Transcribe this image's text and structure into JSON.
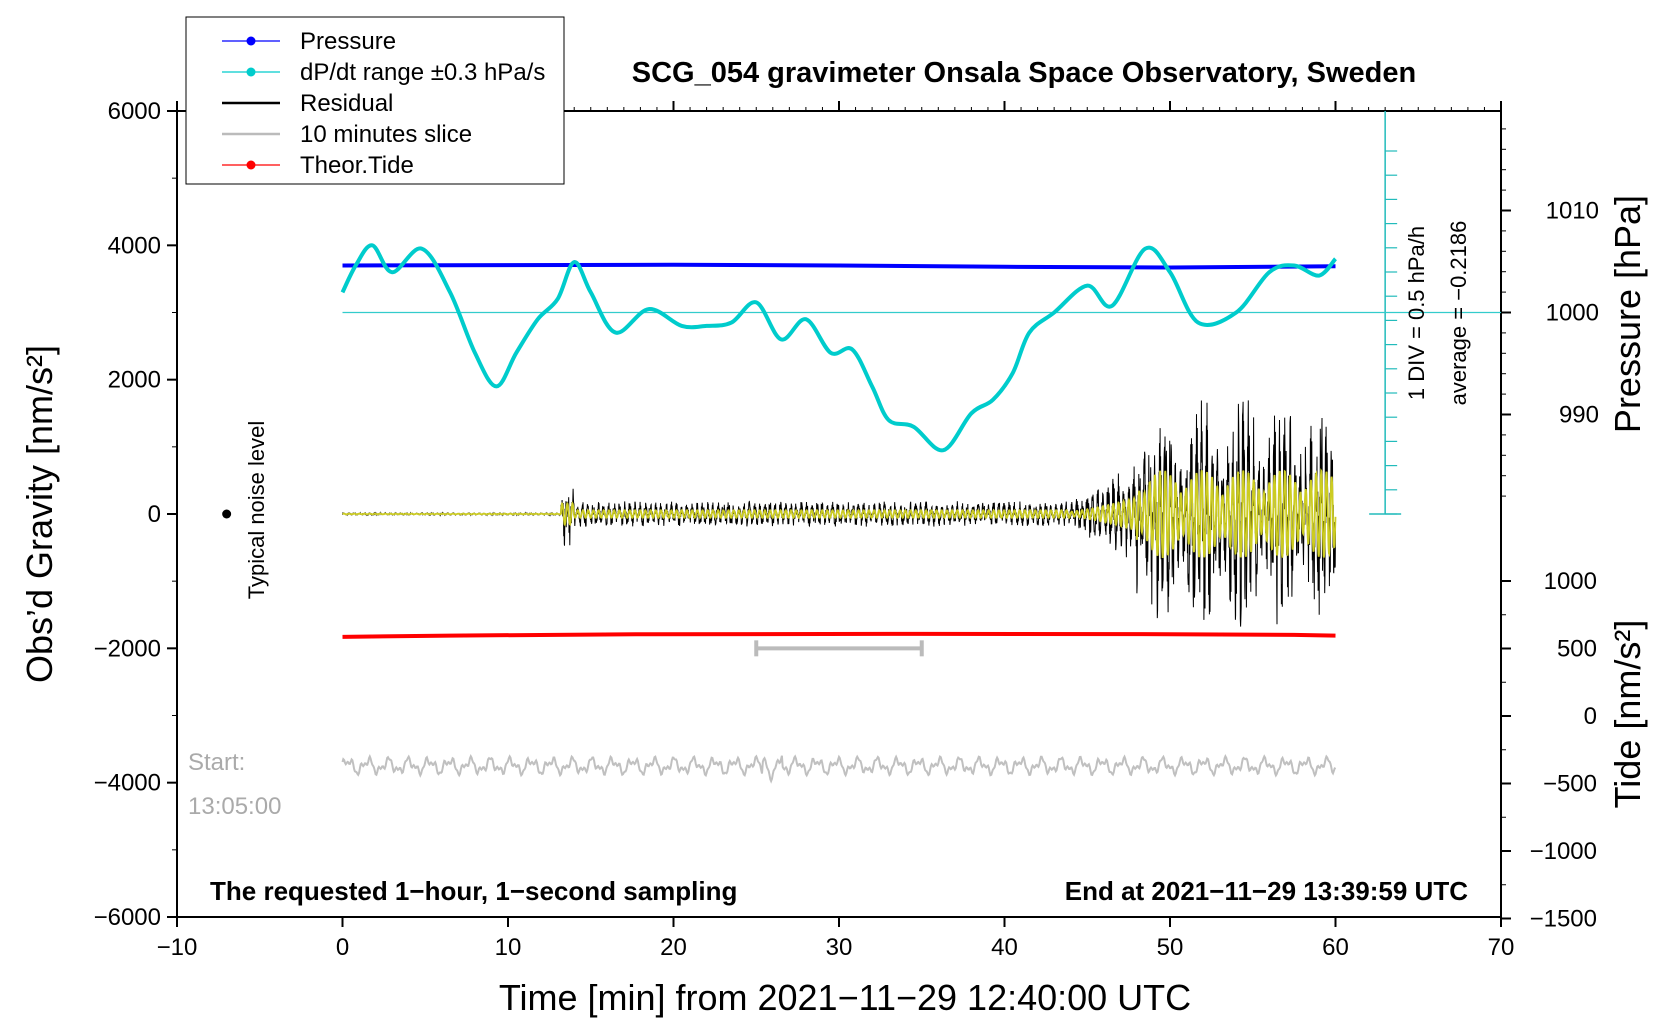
{
  "chart_data": {
    "type": "line",
    "title": "SCG_054 gravimeter Onsala Space Observatory, Sweden",
    "xlabel": "Time [min] from 2021−11−29 12:40:00 UTC",
    "ylabel_left": "Obs’d Gravity [nm/s²]",
    "ylabel_right_top": "Pressure [hPa]",
    "ylabel_right_bottom": "Tide [nm/s²]",
    "xlim": [
      -10,
      70
    ],
    "ylim_left": [
      -6000,
      6000
    ],
    "x_ticks": [
      "−10",
      "0",
      "10",
      "20",
      "30",
      "40",
      "50",
      "60",
      "70"
    ],
    "y_ticks_left": [
      "6000",
      "4000",
      "2000",
      "0",
      "−2000",
      "−4000",
      "−6000"
    ],
    "pressure_ticks": [
      "1010",
      "1000",
      "990"
    ],
    "tide_ticks": [
      "1000",
      "500",
      "0",
      "−500",
      "−1000",
      "−1500"
    ],
    "legend": [
      {
        "label": "Pressure",
        "color": "#0000ff",
        "marker": true
      },
      {
        "label": "dP/dt range ±0.3 hPa/s",
        "color": "#00cccc",
        "marker": true
      },
      {
        "label": "Residual",
        "color": "#000000",
        "marker": false
      },
      {
        "label": "10 minutes slice",
        "color": "#bbbbbb",
        "marker": false
      },
      {
        "label": "Theor.Tide",
        "color": "#ff0000",
        "marker": true
      }
    ],
    "pressure_scale_note": "1 DIV = 0.5 hPa/h",
    "pressure_average_note": "average = −0.2186",
    "noise_label": "Typical noise level",
    "start_label": "Start:",
    "start_time": "13:05:00",
    "footer_left": "The requested 1−hour, 1−second sampling",
    "footer_right": "End at 2021−11−29 13:39:59 UTC",
    "series": [
      {
        "name": "Pressure",
        "color": "#0000ff",
        "x": [
          0,
          10,
          20,
          30,
          40,
          50,
          60
        ],
        "y": [
          3700,
          3705,
          3710,
          3700,
          3680,
          3670,
          3690
        ]
      },
      {
        "name": "dP/dt",
        "color": "#00cccc",
        "x": [
          0,
          0.8,
          1.8,
          3,
          4.8,
          6.5,
          8,
          9.3,
          10.5,
          11.8,
          13,
          14,
          15,
          16.5,
          18.5,
          20.5,
          22,
          23.5,
          25,
          26.5,
          28,
          29.5,
          30.8,
          32,
          33,
          34.5,
          36.3,
          38,
          39.3,
          40.5,
          41.5,
          43,
          45,
          46.5,
          48.5,
          50,
          51.7,
          54,
          56,
          57.5,
          59,
          60
        ],
        "y": [
          3300,
          3700,
          4000,
          3600,
          3950,
          3300,
          2400,
          1900,
          2400,
          2900,
          3200,
          3750,
          3300,
          2700,
          3050,
          2800,
          2800,
          2850,
          3150,
          2600,
          2900,
          2400,
          2450,
          1900,
          1400,
          1300,
          950,
          1500,
          1700,
          2100,
          2700,
          3000,
          3400,
          3100,
          3950,
          3600,
          2850,
          3000,
          3600,
          3700,
          3550,
          3800
        ]
      },
      {
        "name": "Theor.Tide",
        "color": "#ff0000",
        "x": [
          0,
          6.5,
          18.5,
          35,
          50,
          57.5,
          60
        ],
        "y": [
          -1830,
          -1810,
          -1790,
          -1785,
          -1790,
          -1800,
          -1810
        ]
      }
    ],
    "slice_bar": {
      "x0": 25,
      "x1": 35,
      "y": -2000
    }
  }
}
